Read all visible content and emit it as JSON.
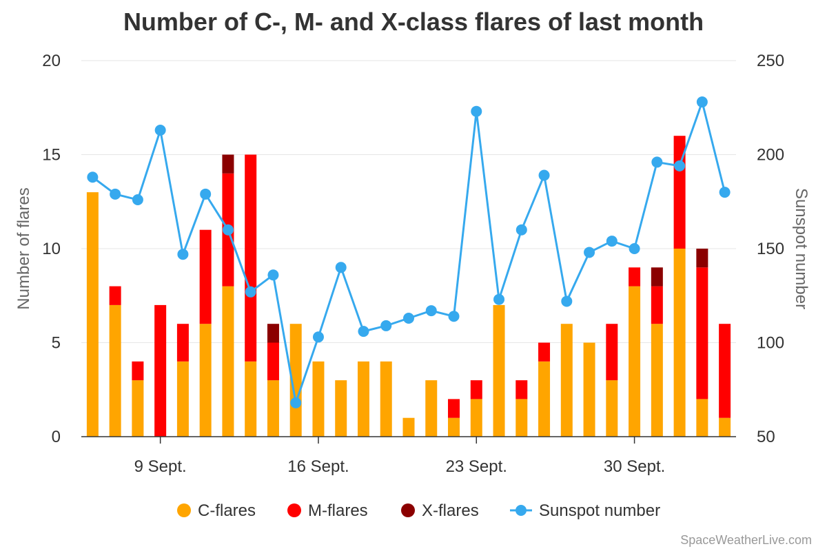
{
  "chart_data": {
    "type": "bar",
    "title": "Number of C-, M- and X-class flares of last month",
    "ylabel": "Number of flares",
    "y2label": "Sunspot number",
    "ylim": [
      0,
      20
    ],
    "y2lim": [
      50,
      250
    ],
    "yticks": [
      0,
      5,
      10,
      15,
      20
    ],
    "y2ticks": [
      50,
      100,
      150,
      200,
      250
    ],
    "stacked": true,
    "grid": true,
    "legend_position": "bottom",
    "x": [
      "2024-09-06",
      "2024-09-07",
      "2024-09-08",
      "2024-09-09",
      "2024-09-10",
      "2024-09-11",
      "2024-09-12",
      "2024-09-13",
      "2024-09-14",
      "2024-09-15",
      "2024-09-16",
      "2024-09-17",
      "2024-09-18",
      "2024-09-19",
      "2024-09-20",
      "2024-09-21",
      "2024-09-22",
      "2024-09-23",
      "2024-09-24",
      "2024-09-25",
      "2024-09-26",
      "2024-09-27",
      "2024-09-28",
      "2024-09-29",
      "2024-09-30",
      "2024-10-01",
      "2024-10-02",
      "2024-10-03",
      "2024-10-04"
    ],
    "x_tick_labels": [
      {
        "date": "2024-09-09",
        "label": "9 Sept."
      },
      {
        "date": "2024-09-16",
        "label": "16 Sept."
      },
      {
        "date": "2024-09-23",
        "label": "23 Sept."
      },
      {
        "date": "2024-09-30",
        "label": "30 Sept."
      }
    ],
    "series": [
      {
        "name": "C-flares",
        "type": "bar",
        "axis": "left",
        "color": "#FFA500",
        "values": [
          13,
          7,
          3,
          0,
          4,
          6,
          8,
          4,
          3,
          6,
          4,
          3,
          4,
          4,
          1,
          3,
          1,
          2,
          7,
          2,
          4,
          6,
          5,
          3,
          8,
          6,
          10,
          2,
          1
        ]
      },
      {
        "name": "M-flares",
        "type": "bar",
        "axis": "left",
        "color": "#FF0000",
        "values": [
          0,
          1,
          1,
          7,
          2,
          5,
          6,
          11,
          2,
          0,
          0,
          0,
          0,
          0,
          0,
          0,
          1,
          1,
          0,
          1,
          1,
          0,
          0,
          3,
          1,
          2,
          6,
          7,
          5
        ]
      },
      {
        "name": "X-flares",
        "type": "bar",
        "axis": "left",
        "color": "#8B0000",
        "values": [
          0,
          0,
          0,
          0,
          0,
          0,
          1,
          0,
          1,
          0,
          0,
          0,
          0,
          0,
          0,
          0,
          0,
          0,
          0,
          0,
          0,
          0,
          0,
          0,
          0,
          1,
          0,
          1,
          0
        ]
      },
      {
        "name": "Sunspot number",
        "type": "line",
        "axis": "right",
        "color": "#36A9EE",
        "values": [
          188,
          179,
          176,
          213,
          147,
          179,
          160,
          127,
          136,
          68,
          103,
          140,
          106,
          109,
          113,
          117,
          114,
          223,
          123,
          160,
          189,
          122,
          148,
          154,
          150,
          196,
          194,
          228,
          180
        ]
      }
    ]
  },
  "credit": "SpaceWeatherLive.com",
  "colors": {
    "gridline": "#e6e6e6",
    "axis_line": "#333333",
    "c_flares": "#FFA500",
    "m_flares": "#FF0000",
    "x_flares": "#8B0000",
    "sunspot": "#36A9EE"
  }
}
